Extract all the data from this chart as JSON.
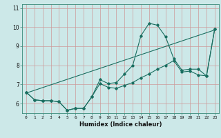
{
  "title": "",
  "xlabel": "Humidex (Indice chaleur)",
  "ylabel": "",
  "background_color": "#cce8e8",
  "grid_color": "#aacccc",
  "line_color": "#1a6e60",
  "xlim": [
    -0.5,
    23.5
  ],
  "ylim": [
    5.5,
    11.2
  ],
  "xticks": [
    0,
    1,
    2,
    3,
    4,
    5,
    6,
    7,
    8,
    9,
    10,
    11,
    12,
    13,
    14,
    15,
    16,
    17,
    18,
    19,
    20,
    21,
    22,
    23
  ],
  "yticks": [
    6,
    7,
    8,
    9,
    10,
    11
  ],
  "line1_x": [
    0,
    1,
    2,
    3,
    4,
    5,
    6,
    7,
    8,
    9,
    10,
    11,
    12,
    13,
    14,
    15,
    16,
    17,
    18,
    19,
    20,
    21,
    22,
    23
  ],
  "line1_y": [
    6.6,
    6.2,
    6.15,
    6.15,
    6.1,
    5.65,
    5.75,
    5.75,
    6.35,
    7.25,
    7.05,
    7.1,
    7.55,
    8.0,
    9.55,
    10.2,
    10.1,
    9.5,
    8.35,
    7.75,
    7.8,
    7.8,
    7.45,
    9.9
  ],
  "line2_x": [
    0,
    1,
    2,
    3,
    4,
    5,
    6,
    7,
    8,
    9,
    10,
    11,
    12,
    13,
    14,
    15,
    16,
    17,
    18,
    19,
    20,
    21,
    22,
    23
  ],
  "line2_y": [
    6.6,
    6.2,
    6.15,
    6.15,
    6.1,
    5.65,
    5.75,
    5.75,
    6.35,
    7.05,
    6.85,
    6.8,
    6.95,
    7.1,
    7.35,
    7.55,
    7.8,
    8.0,
    8.25,
    7.65,
    7.7,
    7.5,
    7.45,
    9.9
  ],
  "line3_x": [
    0,
    23
  ],
  "line3_y": [
    6.55,
    9.85
  ]
}
